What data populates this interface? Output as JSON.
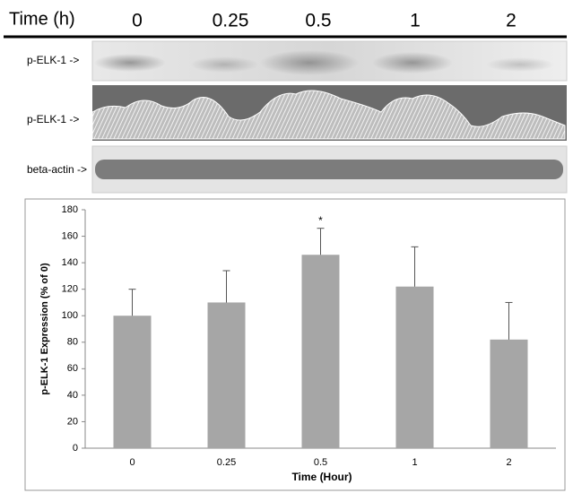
{
  "blot": {
    "time_label": "Time (h)",
    "times": [
      "0",
      "0.25",
      "0.5",
      "1",
      "2"
    ],
    "rows": [
      "p-ELK-1 ->",
      "p-ELK-1 ->",
      "beta-actin ->"
    ]
  },
  "chart_data": {
    "type": "bar",
    "categories": [
      "0",
      "0.25",
      "0.5",
      "1",
      "2"
    ],
    "values": [
      100,
      110,
      146,
      122,
      82
    ],
    "errors": [
      20,
      24,
      20,
      30,
      28
    ],
    "significance": [
      null,
      null,
      "*",
      null,
      null
    ],
    "color": "#a6a6a6",
    "x_label": "Time (Hour)",
    "y_label": "p-ELK-1 Expression (% of 0)",
    "ylim": [
      0,
      180
    ],
    "yticks": [
      0,
      20,
      40,
      60,
      80,
      100,
      120,
      140,
      160,
      180
    ]
  }
}
